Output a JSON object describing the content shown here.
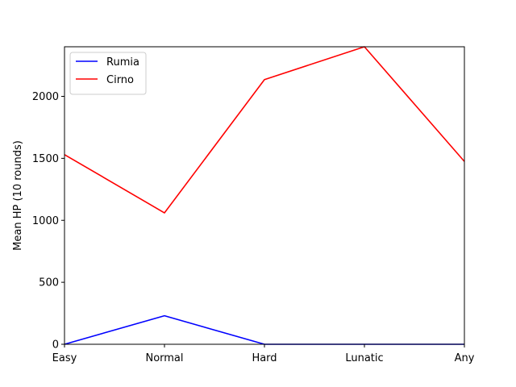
{
  "chart_data": {
    "type": "line",
    "categories": [
      "Easy",
      "Normal",
      "Hard",
      "Lunatic",
      "Any"
    ],
    "series": [
      {
        "name": "Rumia",
        "color": "#0000ff",
        "values": [
          0,
          230,
          0,
          0,
          0
        ]
      },
      {
        "name": "Cirno",
        "color": "#ff0000",
        "values": [
          1530,
          1060,
          2135,
          2400,
          1475
        ]
      }
    ],
    "xlabel": "",
    "ylabel": "Mean HP (10 rounds)",
    "ylim": [
      0,
      2400
    ],
    "yticks": [
      0,
      500,
      1000,
      1500,
      2000
    ],
    "grid": false,
    "legend_position": "upper-left"
  }
}
